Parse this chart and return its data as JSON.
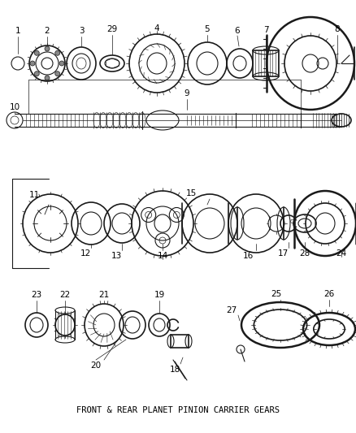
{
  "title": "FRONT & REAR PLANET PINION CARRIER GEARS",
  "bg_color": "#ffffff",
  "lc": "#1a1a1a",
  "fig_w": 4.38,
  "fig_h": 5.33,
  "dpi": 100
}
